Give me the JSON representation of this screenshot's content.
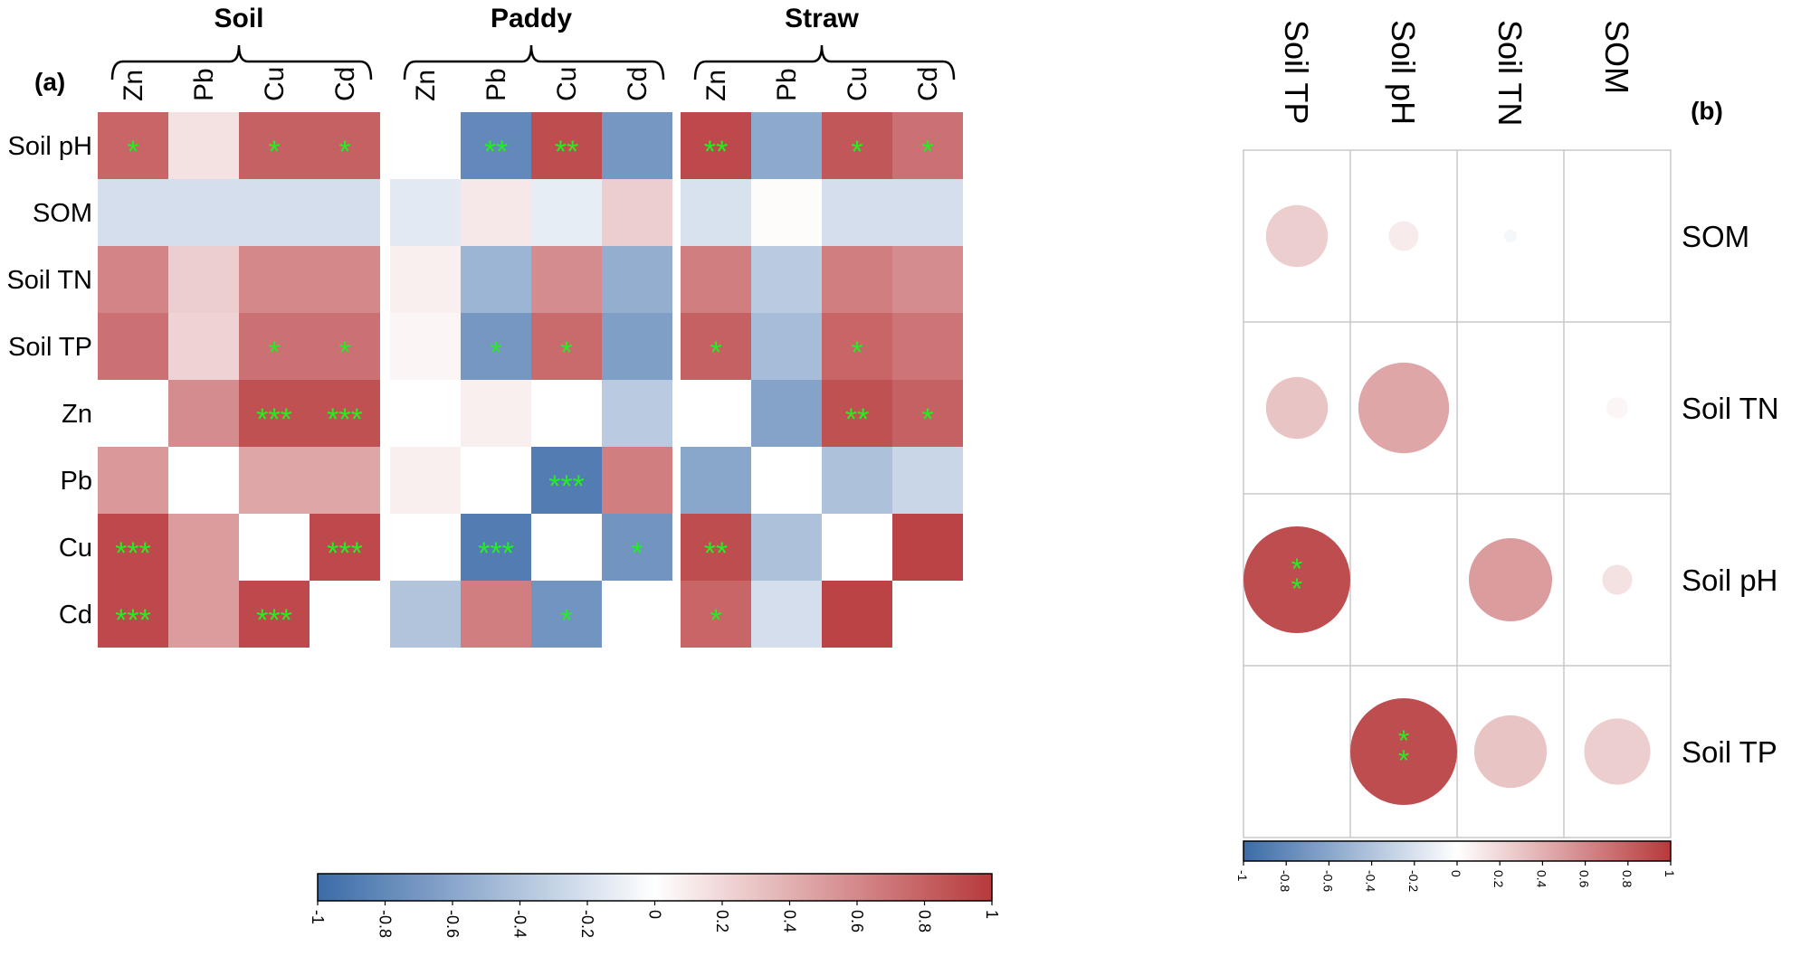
{
  "chart_data": {
    "type": "heatmap",
    "panel_a": {
      "panel_label": "(a)",
      "row_labels": [
        "Soil pH",
        "SOM",
        "Soil TN",
        "Soil TP",
        "Zn",
        "Pb",
        "Cu",
        "Cd"
      ],
      "value_range": [
        -1,
        1
      ],
      "groups": [
        {
          "name": "Soil",
          "columns": [
            "Zn",
            "Pb",
            "Cu",
            "Cd"
          ],
          "values": [
            [
              0.78,
              0.15,
              0.8,
              0.8
            ],
            [
              -0.22,
              -0.22,
              -0.22,
              -0.22
            ],
            [
              0.62,
              0.25,
              0.6,
              0.6
            ],
            [
              0.72,
              0.22,
              0.72,
              0.72
            ],
            [
              0.0,
              0.58,
              0.88,
              0.88
            ],
            [
              0.52,
              0.0,
              0.45,
              0.45
            ],
            [
              0.92,
              0.5,
              0.0,
              0.92
            ],
            [
              0.92,
              0.5,
              0.92,
              null
            ]
          ],
          "significance": [
            [
              "*",
              "",
              "*",
              "*"
            ],
            [
              "",
              "",
              "",
              ""
            ],
            [
              "",
              "",
              "",
              ""
            ],
            [
              "",
              "",
              "*",
              "*"
            ],
            [
              "",
              "",
              "***",
              "***"
            ],
            [
              "",
              "",
              "",
              ""
            ],
            [
              "***",
              "",
              "",
              "***"
            ],
            [
              "***",
              "",
              "***",
              ""
            ]
          ]
        },
        {
          "name": "Paddy",
          "columns": [
            "Zn",
            "Pb",
            "Cu",
            "Cd"
          ],
          "values": [
            [
              null,
              -0.8,
              0.9,
              -0.7
            ],
            [
              -0.15,
              0.12,
              -0.12,
              0.25
            ],
            [
              0.08,
              -0.5,
              0.58,
              -0.55
            ],
            [
              0.05,
              -0.7,
              0.75,
              -0.65
            ],
            [
              0.0,
              0.08,
              0.0,
              -0.35
            ],
            [
              0.08,
              0.0,
              -0.88,
              0.65
            ],
            [
              0.0,
              -0.88,
              0.0,
              -0.72
            ],
            [
              -0.4,
              0.65,
              -0.72,
              null
            ]
          ],
          "significance": [
            [
              "",
              "**",
              "**",
              ""
            ],
            [
              "",
              "",
              "",
              ""
            ],
            [
              "",
              "",
              "",
              ""
            ],
            [
              "",
              "*",
              "*",
              ""
            ],
            [
              "",
              "",
              "",
              ""
            ],
            [
              "",
              "",
              "***",
              ""
            ],
            [
              "",
              "***",
              "",
              "*"
            ],
            [
              "",
              "",
              "*",
              ""
            ]
          ]
        },
        {
          "name": "Straw",
          "columns": [
            "Zn",
            "Pb",
            "Cu",
            "Cd"
          ],
          "values": [
            [
              0.92,
              -0.58,
              0.85,
              0.72
            ],
            [
              -0.2,
              0.02,
              -0.22,
              -0.22
            ],
            [
              0.65,
              -0.35,
              0.65,
              0.58
            ],
            [
              0.8,
              -0.45,
              0.78,
              0.7
            ],
            [
              0.0,
              -0.62,
              0.88,
              0.8
            ],
            [
              -0.6,
              0.0,
              -0.42,
              -0.28
            ],
            [
              0.9,
              -0.42,
              0.0,
              0.95
            ],
            [
              0.78,
              -0.22,
              0.95,
              null
            ]
          ],
          "significance": [
            [
              "**",
              "",
              "*",
              "*"
            ],
            [
              "",
              "",
              "",
              ""
            ],
            [
              "",
              "",
              "",
              ""
            ],
            [
              "*",
              "",
              "*",
              ""
            ],
            [
              "",
              "",
              "**",
              "*"
            ],
            [
              "",
              "",
              "",
              ""
            ],
            [
              "**",
              "",
              "",
              ""
            ],
            [
              "*",
              "",
              "",
              ""
            ]
          ]
        }
      ],
      "colorbar_ticks": [
        "-1",
        "-0.8",
        "-0.6",
        "-0.4",
        "-0.2",
        "0",
        "0.2",
        "0.4",
        "0.6",
        "0.8",
        "1"
      ]
    },
    "panel_b": {
      "panel_label": "(b)",
      "type": "bubble-correlation",
      "column_labels": [
        "Soil TP",
        "Soil pH",
        "Soil TN",
        "SOM"
      ],
      "row_labels": [
        "SOM",
        "Soil TN",
        "Soil pH",
        "Soil TP"
      ],
      "values": [
        [
          0.25,
          0.1,
          -0.05,
          null
        ],
        [
          0.3,
          0.45,
          null,
          0.05
        ],
        [
          0.9,
          null,
          0.5,
          0.15
        ],
        [
          null,
          0.9,
          0.3,
          0.25
        ]
      ],
      "size_scale": [
        0.58,
        0.28,
        0.12,
        null,
        0.58,
        0.85,
        null,
        0.2,
        1.0,
        null,
        0.78,
        0.28,
        null,
        1.0,
        0.68,
        0.62
      ],
      "significance": [
        [
          "",
          "",
          "",
          ""
        ],
        [
          "",
          "",
          "",
          ""
        ],
        [
          "**",
          "",
          "",
          ""
        ],
        [
          "",
          "**",
          "",
          ""
        ]
      ],
      "colorbar_ticks": [
        "-1",
        "-0.8",
        "-0.6",
        "-0.4",
        "-0.2",
        "0",
        "0.2",
        "0.4",
        "0.6",
        "0.8",
        "1"
      ]
    },
    "colors": {
      "negative": "#3b6ba8",
      "neutral": "#ffffff",
      "positive": "#b7393c",
      "significance": "#22ee22",
      "grid": "#c8c8c8"
    }
  }
}
